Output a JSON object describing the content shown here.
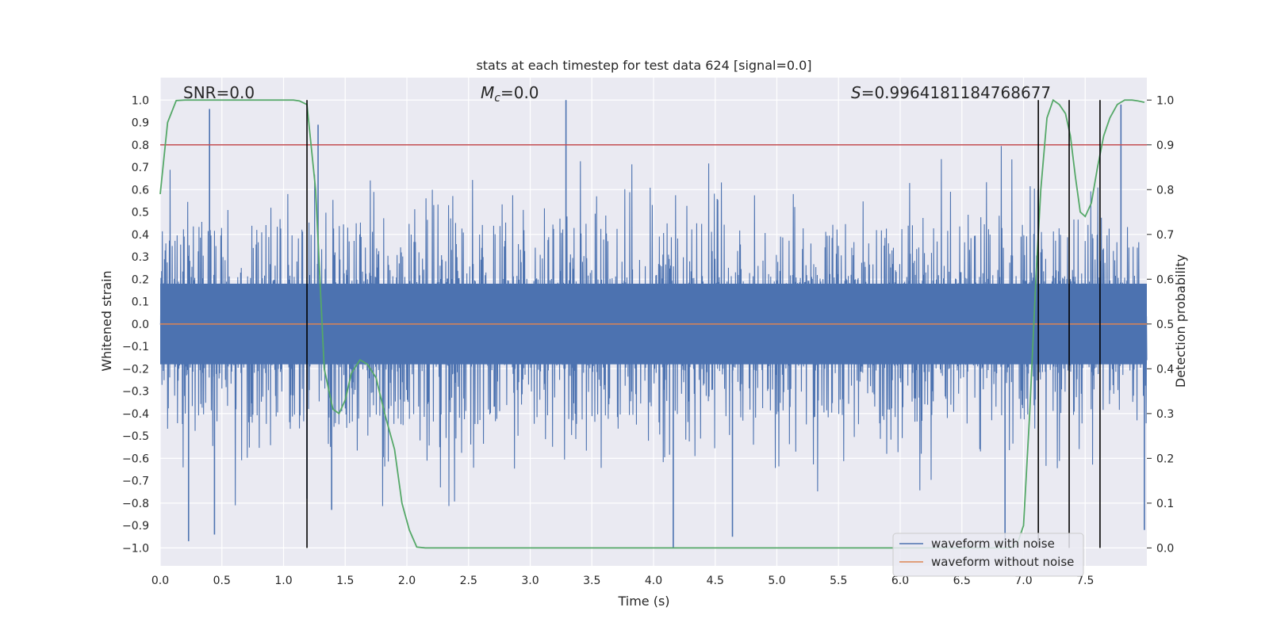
{
  "chart_data": {
    "type": "line",
    "title": "stats at each timestep for test data 624 [signal=0.0]",
    "xlabel": "Time (s)",
    "ylabel": "Whitened strain",
    "y2label": "Detection probability",
    "xlim": [
      0.0,
      8.0
    ],
    "ylim": [
      -1.08,
      1.1
    ],
    "y2lim": [
      -0.04,
      1.05
    ],
    "xticks": [
      0.0,
      0.5,
      1.0,
      1.5,
      2.0,
      2.5,
      3.0,
      3.5,
      4.0,
      4.5,
      5.0,
      5.5,
      6.0,
      6.5,
      7.0,
      7.5
    ],
    "xtick_labels": [
      "0.0",
      "0.5",
      "1.0",
      "1.5",
      "2.0",
      "2.5",
      "3.0",
      "3.5",
      "4.0",
      "4.5",
      "5.0",
      "5.5",
      "6.0",
      "6.5",
      "7.0",
      "7.5"
    ],
    "yticks": [
      -1.0,
      -0.9,
      -0.8,
      -0.7,
      -0.6,
      -0.5,
      -0.4,
      -0.3,
      -0.2,
      -0.1,
      0.0,
      0.1,
      0.2,
      0.3,
      0.4,
      0.5,
      0.6,
      0.7,
      0.8,
      0.9,
      1.0
    ],
    "ytick_labels": [
      "−1.0",
      "−0.9",
      "−0.8",
      "−0.7",
      "−0.6",
      "−0.5",
      "−0.4",
      "−0.3",
      "−0.2",
      "−0.1",
      "0.0",
      "0.1",
      "0.2",
      "0.3",
      "0.4",
      "0.5",
      "0.6",
      "0.7",
      "0.8",
      "0.9",
      "1.0"
    ],
    "y2ticks": [
      0.0,
      0.1,
      0.2,
      0.3,
      0.4,
      0.5,
      0.6,
      0.7,
      0.8,
      0.9,
      1.0
    ],
    "y2tick_labels": [
      "0.0",
      "0.1",
      "0.2",
      "0.3",
      "0.4",
      "0.5",
      "0.6",
      "0.7",
      "0.8",
      "0.9",
      "1.0"
    ],
    "grid": true,
    "annotations": {
      "snr": "SNR=0.0",
      "mc_symbol": "M",
      "mc_sub": "c",
      "mc_value": "=0.0",
      "s_symbol": "S",
      "s_value": "=0.9964181184768677"
    },
    "threshold": {
      "value": 0.9,
      "axis": "y2",
      "color": "#c44e52"
    },
    "noise_series": {
      "name": "waveform with noise",
      "color": "#4c72b0",
      "description_range": [
        -1.0,
        1.0
      ],
      "peaks": [
        {
          "t": 0.4,
          "v": 0.96
        },
        {
          "t": 0.23,
          "v": -0.97
        },
        {
          "t": 0.44,
          "v": -0.94
        },
        {
          "t": 1.28,
          "v": 0.89
        },
        {
          "t": 1.19,
          "v": -0.78
        },
        {
          "t": 1.39,
          "v": -0.83
        },
        {
          "t": 3.29,
          "v": 1.0
        },
        {
          "t": 4.16,
          "v": -1.0
        },
        {
          "t": 4.64,
          "v": -0.95
        },
        {
          "t": 6.85,
          "v": -0.97
        },
        {
          "t": 7.79,
          "v": 0.98
        },
        {
          "t": 7.98,
          "v": -0.92
        }
      ]
    },
    "clean_series": {
      "name": "waveform without noise",
      "color": "#dd8452",
      "value": 0.0
    },
    "probability_series": {
      "name": "detection probability",
      "color": "#55a868",
      "axis": "y2",
      "t": [
        0.0,
        0.06,
        0.13,
        0.2,
        0.3,
        0.5,
        0.7,
        0.9,
        1.0,
        1.08,
        1.13,
        1.19,
        1.26,
        1.33,
        1.4,
        1.45,
        1.5,
        1.55,
        1.62,
        1.68,
        1.75,
        1.82,
        1.9,
        1.96,
        2.02,
        2.08,
        2.15,
        2.3,
        3.0,
        4.0,
        5.0,
        6.0,
        6.9,
        6.95,
        7.0,
        7.05,
        7.1,
        7.14,
        7.19,
        7.24,
        7.29,
        7.34,
        7.38,
        7.42,
        7.46,
        7.5,
        7.55,
        7.6,
        7.65,
        7.7,
        7.76,
        7.82,
        7.88,
        7.93,
        7.98
      ],
      "values": [
        0.79,
        0.95,
        0.999,
        1.0,
        1.0,
        1.0,
        1.0,
        1.0,
        1.0,
        1.0,
        0.998,
        0.99,
        0.8,
        0.4,
        0.31,
        0.3,
        0.33,
        0.39,
        0.42,
        0.41,
        0.38,
        0.3,
        0.22,
        0.1,
        0.04,
        0.002,
        0.0,
        0.0,
        0.0,
        0.0,
        0.0,
        0.0,
        0.0,
        0.01,
        0.05,
        0.3,
        0.6,
        0.8,
        0.96,
        1.0,
        0.99,
        0.97,
        0.92,
        0.83,
        0.75,
        0.74,
        0.77,
        0.85,
        0.92,
        0.96,
        0.99,
        1.0,
        1.0,
        0.998,
        0.995
      ]
    },
    "vlines": {
      "color": "#000000",
      "x": [
        1.19,
        7.12,
        7.37,
        7.62
      ],
      "ymin": 0.0,
      "ymax": 1.0,
      "axis": "y2"
    },
    "legend": {
      "position": "lower-right",
      "entries": [
        {
          "label": "waveform with noise",
          "color": "#4c72b0"
        },
        {
          "label": "waveform without noise",
          "color": "#dd8452"
        }
      ]
    }
  }
}
